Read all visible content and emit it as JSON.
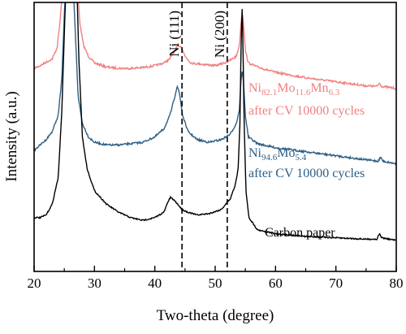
{
  "chart_data": {
    "type": "line",
    "title": "",
    "xlabel": "Two-theta (degree)",
    "ylabel": "Intensity (a.u.)",
    "xlim": [
      20,
      80
    ],
    "x_ticks": [
      "20",
      "30",
      "40",
      "50",
      "60",
      "70",
      "80"
    ],
    "y_ticks_shown": false,
    "grid": false,
    "series": [
      {
        "label_parts": [
          [
            "Ni",
            false
          ],
          [
            "82.1",
            true
          ],
          [
            "Mo",
            false
          ],
          [
            "11.6",
            true
          ],
          [
            "Mn",
            false
          ],
          [
            "6.3",
            true
          ]
        ],
        "label_line2": "after CV 10000 cycles",
        "color": "#f08080",
        "noise": 2.6,
        "points": [
          [
            20,
            0.755
          ],
          [
            21,
            0.765
          ],
          [
            22,
            0.778
          ],
          [
            23,
            0.79
          ],
          [
            23.8,
            0.83
          ],
          [
            24.3,
            0.93
          ],
          [
            24.7,
            1.05
          ],
          [
            27.2,
            1.05
          ],
          [
            27.6,
            0.92
          ],
          [
            28.2,
            0.84
          ],
          [
            29,
            0.8
          ],
          [
            30,
            0.775
          ],
          [
            32,
            0.76
          ],
          [
            34,
            0.755
          ],
          [
            36,
            0.755
          ],
          [
            38,
            0.758
          ],
          [
            40,
            0.765
          ],
          [
            41.5,
            0.775
          ],
          [
            42.5,
            0.79
          ],
          [
            43.3,
            0.82
          ],
          [
            43.9,
            0.84
          ],
          [
            44.4,
            0.835
          ],
          [
            45,
            0.8
          ],
          [
            46,
            0.775
          ],
          [
            48,
            0.77
          ],
          [
            50,
            0.765
          ],
          [
            51.5,
            0.775
          ],
          [
            52.5,
            0.785
          ],
          [
            53.5,
            0.8
          ],
          [
            54,
            0.84
          ],
          [
            54.3,
            0.93
          ],
          [
            54.5,
            0.965
          ],
          [
            54.7,
            0.92
          ],
          [
            55,
            0.82
          ],
          [
            55.5,
            0.775
          ],
          [
            57,
            0.76
          ],
          [
            60,
            0.74
          ],
          [
            65,
            0.72
          ],
          [
            70,
            0.705
          ],
          [
            75,
            0.69
          ],
          [
            76.8,
            0.688
          ],
          [
            77.2,
            0.7
          ],
          [
            77.6,
            0.688
          ],
          [
            80,
            0.68
          ]
        ]
      },
      {
        "label_parts": [
          [
            "Ni",
            false
          ],
          [
            "94.6",
            true
          ],
          [
            "Mo",
            false
          ],
          [
            "5.4",
            true
          ]
        ],
        "label_line2": "after CV 10000 cycles",
        "color": "#2e5f85",
        "noise": 2.4,
        "points": [
          [
            20,
            0.45
          ],
          [
            21,
            0.47
          ],
          [
            22,
            0.49
          ],
          [
            23,
            0.52
          ],
          [
            24,
            0.58
          ],
          [
            24.6,
            0.72
          ],
          [
            25,
            0.95
          ],
          [
            25.2,
            1.05
          ],
          [
            26.5,
            1.05
          ],
          [
            26.8,
            0.9
          ],
          [
            27.3,
            0.65
          ],
          [
            28,
            0.55
          ],
          [
            29,
            0.5
          ],
          [
            30,
            0.48
          ],
          [
            32,
            0.47
          ],
          [
            34,
            0.47
          ],
          [
            36,
            0.475
          ],
          [
            38,
            0.48
          ],
          [
            40,
            0.5
          ],
          [
            41.5,
            0.53
          ],
          [
            42.5,
            0.58
          ],
          [
            43.2,
            0.64
          ],
          [
            43.7,
            0.69
          ],
          [
            44.1,
            0.66
          ],
          [
            44.6,
            0.58
          ],
          [
            45.5,
            0.52
          ],
          [
            47,
            0.49
          ],
          [
            49,
            0.48
          ],
          [
            51,
            0.49
          ],
          [
            52.5,
            0.51
          ],
          [
            53.5,
            0.55
          ],
          [
            54,
            0.6
          ],
          [
            54.3,
            0.72
          ],
          [
            54.5,
            0.745
          ],
          [
            54.7,
            0.7
          ],
          [
            55,
            0.58
          ],
          [
            55.5,
            0.5
          ],
          [
            57,
            0.475
          ],
          [
            60,
            0.46
          ],
          [
            65,
            0.445
          ],
          [
            70,
            0.43
          ],
          [
            75,
            0.415
          ],
          [
            77,
            0.41
          ],
          [
            77.4,
            0.425
          ],
          [
            77.8,
            0.41
          ],
          [
            80,
            0.4
          ]
        ]
      },
      {
        "label": "Carbon paper",
        "color": "#000000",
        "noise": 1.6,
        "points": [
          [
            20,
            0.2
          ],
          [
            21,
            0.2
          ],
          [
            22,
            0.21
          ],
          [
            23,
            0.25
          ],
          [
            24,
            0.35
          ],
          [
            24.6,
            0.6
          ],
          [
            25.1,
            0.95
          ],
          [
            25.3,
            1.05
          ],
          [
            27.1,
            1.05
          ],
          [
            27.4,
            0.8
          ],
          [
            28,
            0.5
          ],
          [
            28.8,
            0.38
          ],
          [
            30,
            0.3
          ],
          [
            32,
            0.25
          ],
          [
            34,
            0.22
          ],
          [
            36,
            0.2
          ],
          [
            38,
            0.19
          ],
          [
            40,
            0.2
          ],
          [
            41.5,
            0.22
          ],
          [
            42.2,
            0.26
          ],
          [
            42.6,
            0.275
          ],
          [
            43.2,
            0.265
          ],
          [
            43.8,
            0.25
          ],
          [
            44.5,
            0.23
          ],
          [
            45.5,
            0.22
          ],
          [
            47,
            0.21
          ],
          [
            49,
            0.215
          ],
          [
            51,
            0.23
          ],
          [
            52.5,
            0.27
          ],
          [
            53.3,
            0.32
          ],
          [
            53.8,
            0.38
          ],
          [
            54.1,
            0.55
          ],
          [
            54.3,
            0.85
          ],
          [
            54.45,
            0.99
          ],
          [
            54.6,
            0.85
          ],
          [
            54.8,
            0.55
          ],
          [
            55.1,
            0.3
          ],
          [
            55.6,
            0.2
          ],
          [
            57,
            0.155
          ],
          [
            60,
            0.14
          ],
          [
            65,
            0.13
          ],
          [
            70,
            0.125
          ],
          [
            75,
            0.12
          ],
          [
            76.8,
            0.12
          ],
          [
            77.2,
            0.14
          ],
          [
            77.6,
            0.125
          ],
          [
            80,
            0.115
          ]
        ]
      }
    ],
    "reference_lines": [
      {
        "x": 44.5,
        "label": "Ni (111)"
      },
      {
        "x": 52.0,
        "label": "Ni (200)"
      }
    ]
  }
}
